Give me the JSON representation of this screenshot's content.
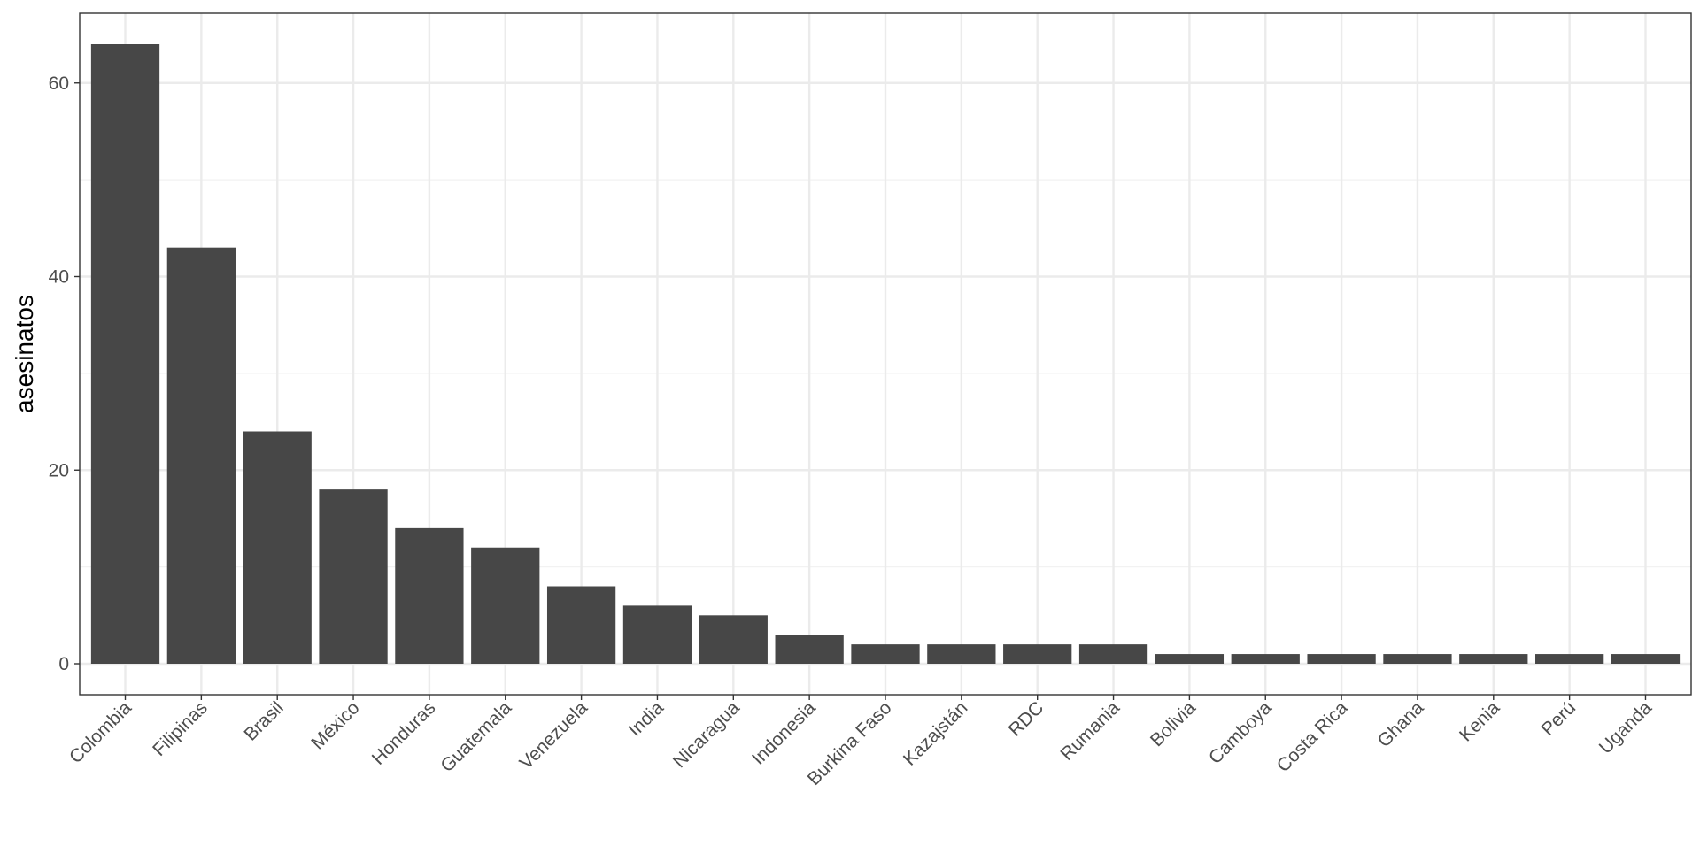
{
  "chart_data": {
    "type": "bar",
    "title": "",
    "xlabel": "",
    "ylabel": "asesinatos",
    "categories": [
      "Colombia",
      "Filipinas",
      "Brasil",
      "México",
      "Honduras",
      "Guatemala",
      "Venezuela",
      "India",
      "Nicaragua",
      "Indonesia",
      "Burkina Faso",
      "Kazajstán",
      "RDC",
      "Rumania",
      "Bolivia",
      "Camboya",
      "Costa Rica",
      "Ghana",
      "Kenia",
      "Perú",
      "Uganda"
    ],
    "values": [
      64,
      43,
      24,
      18,
      14,
      12,
      8,
      6,
      5,
      3,
      2,
      2,
      2,
      2,
      1,
      1,
      1,
      1,
      1,
      1,
      1
    ],
    "ylim": [
      -3.2,
      67.2
    ],
    "yticks": [
      0,
      20,
      40,
      60
    ],
    "grid": true,
    "legend": "none",
    "colors": {
      "bar": "#474747",
      "panel_background": "#ffffff",
      "panel_border": "#333333",
      "grid_major": "#ebebeb",
      "grid_minor": "#f2f2f2",
      "tick_label": "#4d4d4d",
      "axis_title": "#000000"
    }
  }
}
